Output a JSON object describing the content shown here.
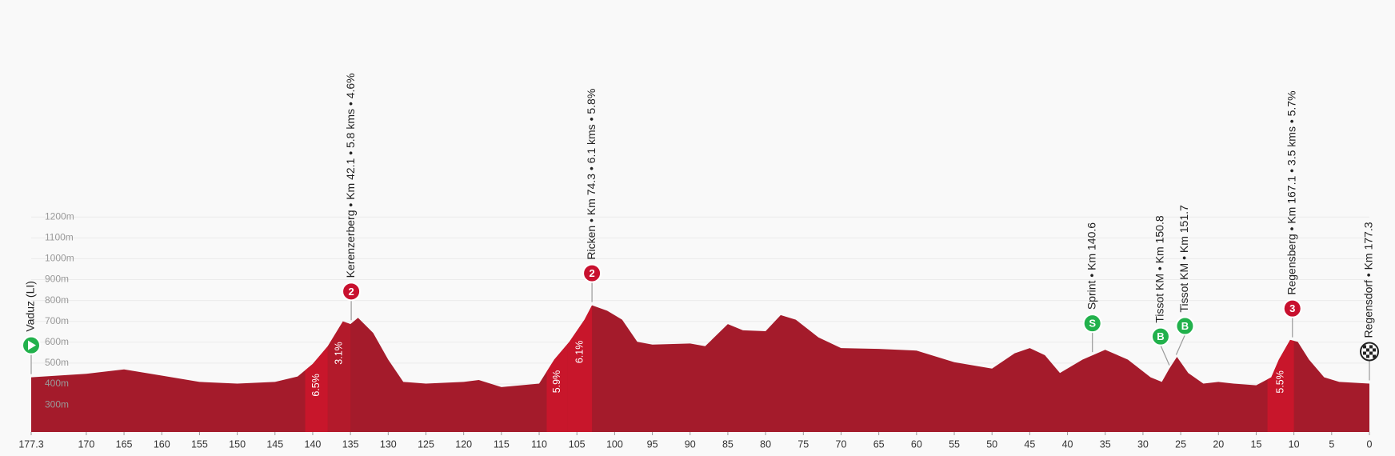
{
  "chart_data": {
    "type": "area",
    "color": "#a41b2b",
    "x": [
      177.3,
      170,
      165,
      160,
      155,
      150,
      145,
      142,
      140,
      138,
      136,
      135,
      134,
      132,
      130,
      128,
      125,
      120,
      118,
      115,
      110,
      108,
      106,
      104,
      103,
      101,
      99,
      97,
      95,
      90,
      88,
      85,
      83,
      80,
      78,
      76,
      73,
      70,
      65,
      60,
      55,
      50,
      47,
      45,
      43,
      41,
      38,
      35,
      32,
      29,
      27.5,
      26.5,
      25.5,
      24,
      22,
      20,
      18,
      15,
      13,
      12,
      10.5,
      9.5,
      8,
      6,
      4,
      0
    ],
    "values": [
      432,
      449,
      470,
      440,
      410,
      402,
      410,
      436,
      496,
      581,
      700,
      687,
      717,
      645,
      517,
      410,
      402,
      410,
      419,
      385,
      402,
      517,
      602,
      708,
      777,
      751,
      708,
      602,
      589,
      594,
      581,
      687,
      657,
      653,
      730,
      708,
      623,
      572,
      568,
      560,
      504,
      474,
      547,
      572,
      538,
      453,
      517,
      564,
      517,
      432,
      410,
      474,
      530,
      453,
      402,
      410,
      402,
      394,
      432,
      517,
      611,
      602,
      517,
      432,
      410,
      402
    ],
    "xlim": [
      177.3,
      0
    ],
    "xticks": [
      177.3,
      170,
      165,
      160,
      155,
      150,
      145,
      140,
      135,
      130,
      125,
      120,
      115,
      110,
      105,
      100,
      95,
      90,
      85,
      80,
      75,
      70,
      65,
      60,
      55,
      50,
      45,
      40,
      35,
      30,
      25,
      20,
      15,
      10,
      5,
      0
    ],
    "ylim": [
      170,
      1450
    ],
    "yticks": [
      {
        "value": 300,
        "label": "300m"
      },
      {
        "value": 400,
        "label": "400m"
      },
      {
        "value": 500,
        "label": "500m"
      },
      {
        "value": 600,
        "label": "600m"
      },
      {
        "value": 700,
        "label": "700m"
      },
      {
        "value": 800,
        "label": "800m"
      },
      {
        "value": 900,
        "label": "900m"
      },
      {
        "value": 1000,
        "label": "1000m"
      },
      {
        "value": 1100,
        "label": "1100m"
      },
      {
        "value": 1200,
        "label": "1200m"
      }
    ],
    "grid": true,
    "climbs": [
      {
        "from": 141,
        "to": 138,
        "label": "6.5%",
        "color": "#c8162b"
      },
      {
        "from": 138,
        "to": 135,
        "label": "3.1%",
        "color": "#b31a2b"
      },
      {
        "from": 109,
        "to": 106.2,
        "label": "5.9%",
        "color": "#c8162b"
      },
      {
        "from": 106.2,
        "to": 103,
        "label": "6.1%",
        "color": "#c8162b"
      },
      {
        "from": 13.5,
        "to": 10,
        "label": "5.5%",
        "color": "#c8162b"
      }
    ],
    "annotations": [
      {
        "x": 177.3,
        "label": "Vaduz (LI)",
        "icon_shape": "play",
        "color": "#22b14c"
      },
      {
        "x": 134.9,
        "label": "Kerenzerberg • Km 42.1 • 5.8 kms • 4.6%",
        "icon": "2",
        "icon_shape": "circle",
        "color": "#c8102e"
      },
      {
        "x": 103,
        "label": "Ricken • Km 74.3 • 6.1 kms • 5.8%",
        "icon": "2",
        "icon_shape": "circle",
        "color": "#c8102e"
      },
      {
        "x": 36.7,
        "label": "Sprint • Km 140.6",
        "icon": "S",
        "icon_shape": "circle",
        "color": "#22b14c"
      },
      {
        "x": 26.5,
        "label": "Tissot KM • Km 150.8",
        "icon": "B",
        "icon_shape": "circle",
        "color": "#22b14c"
      },
      {
        "x": 25.6,
        "label": "Tissot KM • Km 151.7",
        "icon": "B",
        "icon_shape": "circle",
        "color": "#22b14c"
      },
      {
        "x": 10.2,
        "label": "Regensberg • Km 167.1 • 3.5 kms • 5.7%",
        "icon": "3",
        "icon_shape": "circle",
        "color": "#c8102e"
      },
      {
        "x": 0,
        "label": "Regensdorf • Km 177.3",
        "icon_shape": "checker",
        "color": "#222222"
      }
    ]
  }
}
